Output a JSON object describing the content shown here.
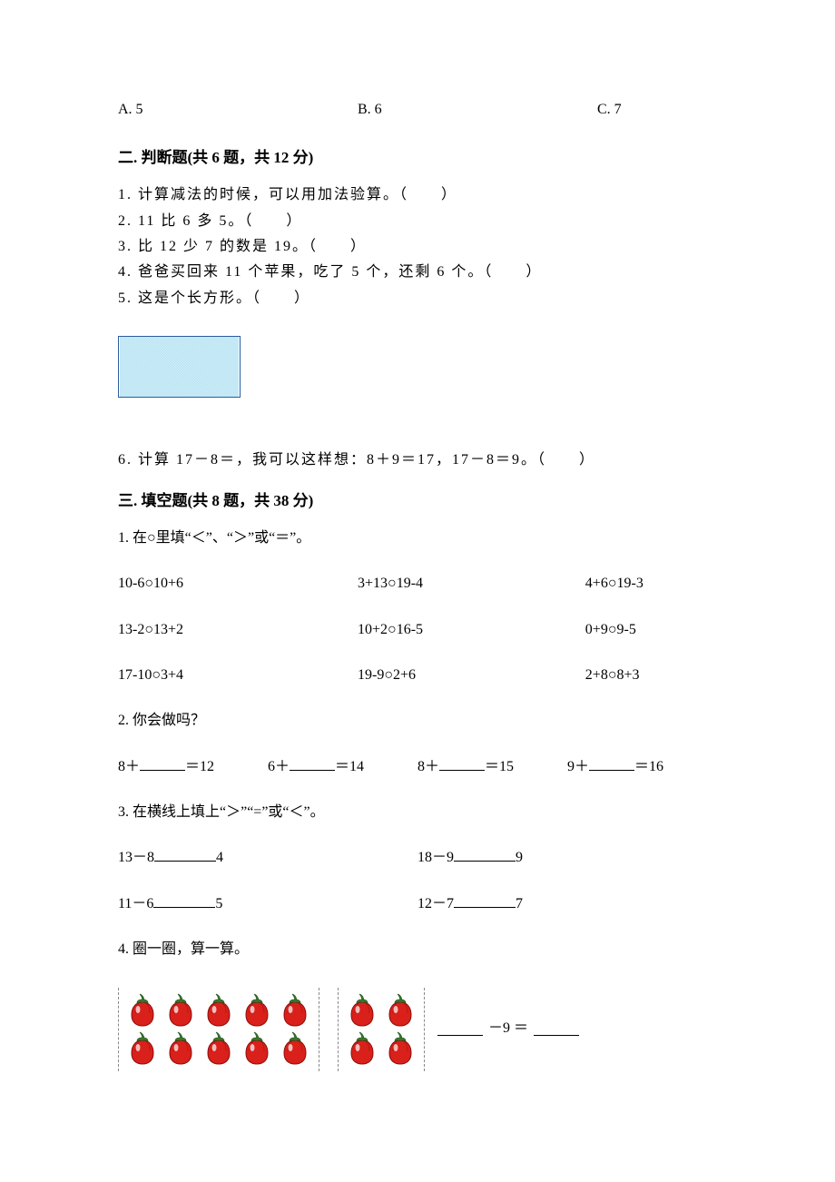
{
  "choices": {
    "a": "A. 5",
    "b": "B. 6",
    "c": "C. 7"
  },
  "sec2": {
    "heading": "二. 判断题(共 6 题，共 12 分)",
    "q1": "1. 计算减法的时候，可以用加法验算。（　　）",
    "q2": "2. 11 比 6 多 5。（　　）",
    "q3": "3. 比 12 少 7 的数是 19。（　　）",
    "q4": "4. 爸爸买回来 11 个苹果，吃了 5 个，还剩 6 个。（　　）",
    "q5": "5. 这是个长方形。（　　）",
    "q6": "6. 计算 17－8＝，我可以这样想：8＋9＝17，17－8＝9。（　　）"
  },
  "rect": {
    "fill": "#bfe7f7",
    "border": "#2c5aa0"
  },
  "sec3": {
    "heading": "三. 填空题(共 8 题，共 38 分)",
    "q1_stem": "1. 在○里填“＜”、“＞”或“＝”。",
    "q1_rows": [
      [
        "10-6○10+6",
        "3+13○19-4",
        "4+6○19-3"
      ],
      [
        "13-2○13+2",
        "10+2○16-5",
        "0+9○9-5"
      ],
      [
        "17-10○3+4",
        "19-9○2+6",
        "2+8○8+3"
      ]
    ],
    "q2_stem": "2. 你会做吗？",
    "q2_items": {
      "a_pre": "8＋",
      "a_post": "＝12",
      "b_pre": "6＋",
      "b_post": "＝14",
      "c_pre": "8＋",
      "c_post": "＝15",
      "d_pre": "9＋",
      "d_post": "＝16"
    },
    "q3_stem": "3. 在横线上填上“＞”“=”或“＜”。",
    "q3_items": {
      "a_pre": "13－8",
      "a_post": "4",
      "b_pre": "18－9",
      "b_post": "9",
      "c_pre": "11－6",
      "c_post": "5",
      "d_pre": "12－7",
      "d_post": "7"
    },
    "q4_stem": "4. 圈一圈，算一算。",
    "q4_eq_mid": "－9 ＝"
  },
  "pepper": {
    "group1_cols": 5,
    "group1_rows": 2,
    "group2_cols": 2,
    "group2_rows": 2,
    "body_fill": "#d9201a",
    "body_stroke": "#8b0e0a",
    "highlight": "#ffffff",
    "stem_fill": "#3a7d2f",
    "stem_stroke": "#275a20"
  }
}
